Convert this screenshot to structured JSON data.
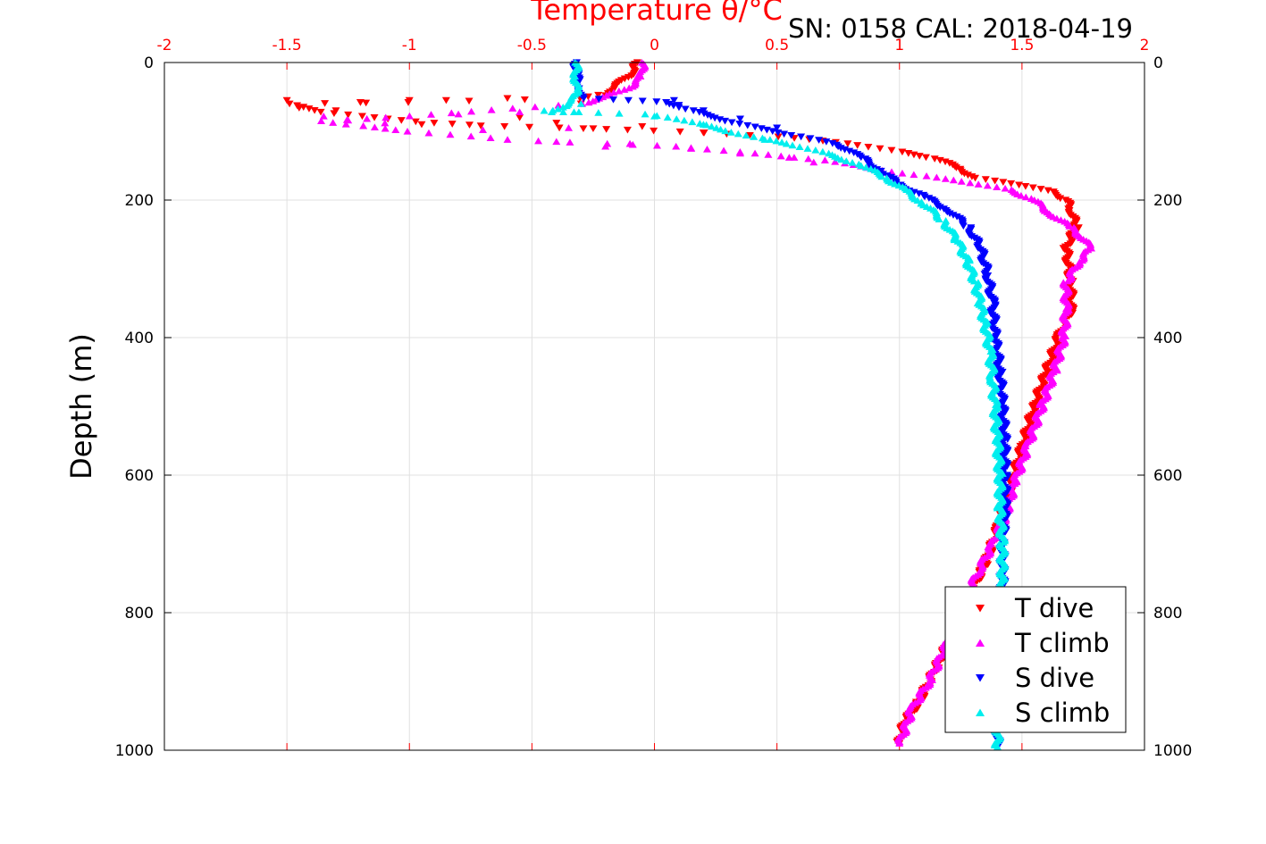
{
  "chart_data": {
    "type": "scatter",
    "title": "Temperature θ/°C",
    "annotation": "SN: 0158  CAL: 2018-04-19",
    "xlabel": "Temperature θ/°C",
    "ylabel": "Depth (m)",
    "xlim": [
      -2,
      2
    ],
    "ylim": [
      1000,
      0
    ],
    "y_reversed": true,
    "grid": true,
    "legend_placement": "bottom-right",
    "x_ticks": [
      "-2",
      "-1.5",
      "-1",
      "-0.5",
      "0",
      "0.5",
      "1",
      "1.5",
      "2"
    ],
    "y_ticks": [
      "0",
      "200",
      "400",
      "600",
      "800",
      "1000"
    ],
    "colors": {
      "axis_top": "#ff0000",
      "grid": "#e0e0e0"
    },
    "series": [
      {
        "name": "T dive",
        "color": "#ff0000",
        "marker": "triangle-down",
        "profile": [
          [
            -0.07,
            0
          ],
          [
            -0.09,
            15
          ],
          [
            -0.14,
            30
          ],
          [
            -0.2,
            45
          ],
          [
            -0.3,
            52
          ],
          [
            -1.0,
            58
          ],
          [
            -1.5,
            60
          ],
          [
            -1.35,
            72
          ],
          [
            -1.15,
            80
          ],
          [
            -0.9,
            88
          ],
          [
            -0.7,
            92
          ],
          [
            -0.4,
            95
          ],
          [
            -0.1,
            98
          ],
          [
            0.2,
            102
          ],
          [
            0.5,
            108
          ],
          [
            0.8,
            118
          ],
          [
            1.0,
            130
          ],
          [
            1.15,
            140
          ],
          [
            1.25,
            155
          ],
          [
            1.3,
            168
          ],
          [
            1.5,
            178
          ],
          [
            1.62,
            188
          ],
          [
            1.68,
            200
          ],
          [
            1.7,
            215
          ],
          [
            1.72,
            240
          ],
          [
            1.68,
            270
          ],
          [
            1.7,
            320
          ],
          [
            1.7,
            360
          ],
          [
            1.65,
            400
          ],
          [
            1.6,
            450
          ],
          [
            1.55,
            500
          ],
          [
            1.5,
            560
          ],
          [
            1.45,
            620
          ],
          [
            1.4,
            680
          ],
          [
            1.35,
            730
          ],
          [
            1.28,
            780
          ],
          [
            1.22,
            830
          ],
          [
            1.15,
            880
          ],
          [
            1.08,
            930
          ],
          [
            1.02,
            960
          ],
          [
            1.0,
            990
          ]
        ],
        "scatter_points": [
          [
            -1.5,
            55
          ],
          [
            -1.45,
            66
          ],
          [
            -1.3,
            70
          ],
          [
            -1.2,
            58
          ],
          [
            -1.0,
            55
          ],
          [
            -0.85,
            55
          ],
          [
            -0.6,
            52
          ],
          [
            -0.3,
            60
          ],
          [
            -0.2,
            48
          ],
          [
            -0.95,
            90
          ],
          [
            -0.55,
            80
          ],
          [
            -0.4,
            88
          ],
          [
            -0.25,
            96
          ],
          [
            -0.05,
            93
          ],
          [
            0.2,
            102
          ]
        ]
      },
      {
        "name": "T climb",
        "color": "#ff00ff",
        "marker": "triangle-up",
        "profile": [
          [
            -0.05,
            0
          ],
          [
            -0.05,
            20
          ],
          [
            -0.1,
            35
          ],
          [
            -0.2,
            50
          ],
          [
            -0.3,
            60
          ],
          [
            -1.1,
            80
          ],
          [
            -1.35,
            85
          ],
          [
            -1.2,
            92
          ],
          [
            -1.0,
            100
          ],
          [
            -0.6,
            112
          ],
          [
            -0.2,
            118
          ],
          [
            0.1,
            122
          ],
          [
            0.4,
            132
          ],
          [
            0.7,
            142
          ],
          [
            0.9,
            155
          ],
          [
            1.1,
            165
          ],
          [
            1.3,
            175
          ],
          [
            1.45,
            185
          ],
          [
            1.55,
            200
          ],
          [
            1.62,
            220
          ],
          [
            1.7,
            240
          ],
          [
            1.75,
            255
          ],
          [
            1.78,
            270
          ],
          [
            1.73,
            290
          ],
          [
            1.68,
            320
          ],
          [
            1.68,
            360
          ],
          [
            1.67,
            400
          ],
          [
            1.63,
            450
          ],
          [
            1.58,
            500
          ],
          [
            1.52,
            560
          ],
          [
            1.47,
            610
          ],
          [
            1.43,
            660
          ],
          [
            1.38,
            700
          ],
          [
            1.32,
            740
          ],
          [
            1.27,
            780
          ],
          [
            1.2,
            840
          ],
          [
            1.12,
            900
          ],
          [
            1.05,
            940
          ],
          [
            1.0,
            990
          ]
        ],
        "scatter_points": [
          [
            -1.35,
            78
          ],
          [
            -1.25,
            84
          ],
          [
            -1.1,
            88
          ],
          [
            -0.8,
            75
          ],
          [
            -0.55,
            72
          ],
          [
            -0.4,
            115
          ],
          [
            -0.2,
            122
          ],
          [
            -0.1,
            118
          ],
          [
            0.15,
            125
          ],
          [
            0.35,
            132
          ],
          [
            0.55,
            138
          ],
          [
            0.65,
            145
          ],
          [
            -0.35,
            95
          ],
          [
            -0.7,
            98
          ]
        ]
      },
      {
        "name": "S dive",
        "color": "#0000ff",
        "marker": "triangle-down",
        "profile": [
          [
            -0.32,
            0
          ],
          [
            -0.32,
            20
          ],
          [
            -0.3,
            40
          ],
          [
            -0.3,
            52
          ],
          [
            -0.1,
            55
          ],
          [
            0.05,
            58
          ],
          [
            0.15,
            70
          ],
          [
            0.3,
            85
          ],
          [
            0.45,
            98
          ],
          [
            0.6,
            108
          ],
          [
            0.75,
            120
          ],
          [
            0.85,
            140
          ],
          [
            0.93,
            160
          ],
          [
            1.0,
            178
          ],
          [
            1.1,
            195
          ],
          [
            1.2,
            215
          ],
          [
            1.28,
            240
          ],
          [
            1.33,
            270
          ],
          [
            1.36,
            310
          ],
          [
            1.38,
            350
          ],
          [
            1.39,
            400
          ],
          [
            1.41,
            450
          ],
          [
            1.42,
            500
          ],
          [
            1.43,
            550
          ],
          [
            1.43,
            600
          ],
          [
            1.43,
            650
          ],
          [
            1.42,
            700
          ],
          [
            1.42,
            750
          ],
          [
            1.42,
            800
          ],
          [
            1.41,
            850
          ],
          [
            1.41,
            900
          ],
          [
            1.4,
            950
          ],
          [
            1.4,
            995
          ]
        ],
        "scatter_points": [
          [
            0.08,
            55
          ],
          [
            0.1,
            62
          ],
          [
            0.2,
            70
          ],
          [
            0.35,
            82
          ],
          [
            0.5,
            95
          ]
        ]
      },
      {
        "name": "S climb",
        "color": "#00eeee",
        "marker": "triangle-up",
        "profile": [
          [
            -0.32,
            0
          ],
          [
            -0.32,
            20
          ],
          [
            -0.32,
            40
          ],
          [
            -0.33,
            55
          ],
          [
            -0.38,
            65
          ],
          [
            -0.42,
            72
          ],
          [
            -0.3,
            72
          ],
          [
            -0.05,
            75
          ],
          [
            0.1,
            82
          ],
          [
            0.25,
            95
          ],
          [
            0.4,
            108
          ],
          [
            0.55,
            118
          ],
          [
            0.7,
            132
          ],
          [
            0.85,
            150
          ],
          [
            0.95,
            168
          ],
          [
            1.02,
            185
          ],
          [
            1.1,
            205
          ],
          [
            1.18,
            230
          ],
          [
            1.24,
            260
          ],
          [
            1.28,
            290
          ],
          [
            1.31,
            320
          ],
          [
            1.33,
            350
          ],
          [
            1.35,
            380
          ],
          [
            1.37,
            420
          ],
          [
            1.38,
            460
          ],
          [
            1.39,
            500
          ],
          [
            1.4,
            550
          ],
          [
            1.41,
            600
          ],
          [
            1.41,
            650
          ],
          [
            1.42,
            700
          ],
          [
            1.42,
            750
          ],
          [
            1.42,
            800
          ],
          [
            1.41,
            850
          ],
          [
            1.41,
            900
          ],
          [
            1.4,
            950
          ],
          [
            1.4,
            995
          ]
        ],
        "scatter_points": [
          [
            -0.45,
            70
          ],
          [
            -0.3,
            60
          ],
          [
            0.0,
            78
          ],
          [
            0.2,
            90
          ],
          [
            0.45,
            112
          ]
        ]
      }
    ]
  }
}
